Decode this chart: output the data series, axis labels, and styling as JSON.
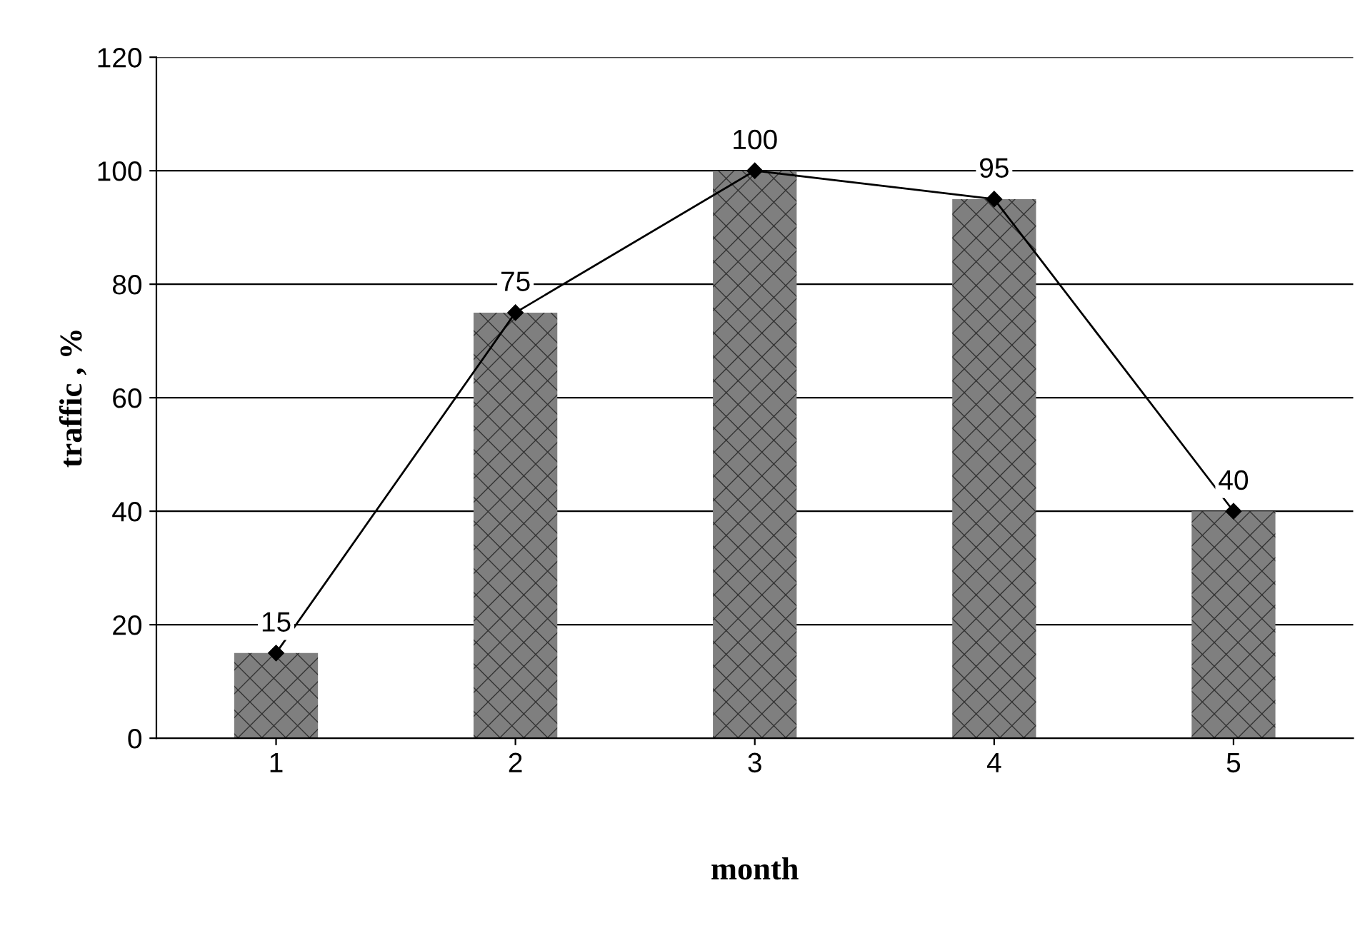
{
  "chart_data": {
    "type": "bar",
    "xlabel": "month",
    "ylabel": "traffic , %",
    "categories": [
      "1",
      "2",
      "3",
      "4",
      "5"
    ],
    "series": [
      {
        "color": "#7f7f7f",
        "values": [
          15,
          75,
          100,
          95,
          40
        ]
      },
      {
        "type": "line",
        "color": "#000000",
        "marker": "diamond",
        "values": [
          15,
          75,
          100,
          95,
          40
        ],
        "value_labels": [
          "15",
          "75",
          "100",
          "95",
          "40"
        ]
      }
    ],
    "ylim": [
      0,
      120
    ],
    "yticks": [
      0,
      20,
      40,
      60,
      80,
      100,
      120
    ],
    "grid": "y",
    "legend": false
  }
}
